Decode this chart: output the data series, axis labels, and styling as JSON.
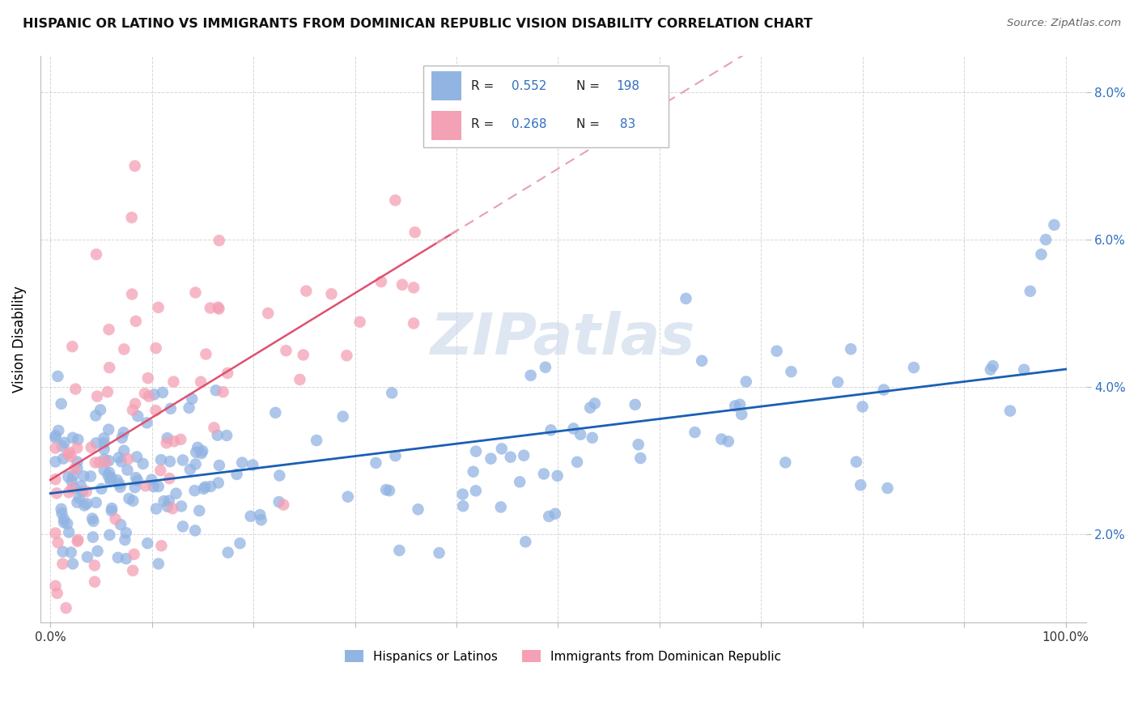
{
  "title": "HISPANIC OR LATINO VS IMMIGRANTS FROM DOMINICAN REPUBLIC VISION DISABILITY CORRELATION CHART",
  "source": "Source: ZipAtlas.com",
  "ylabel": "Vision Disability",
  "xlim": [
    -0.01,
    1.02
  ],
  "ylim": [
    0.008,
    0.085
  ],
  "yticks": [
    0.02,
    0.04,
    0.06,
    0.08
  ],
  "ytick_labels": [
    "2.0%",
    "4.0%",
    "6.0%",
    "8.0%"
  ],
  "xticks": [
    0.0,
    0.1,
    0.2,
    0.3,
    0.4,
    0.5,
    0.6,
    0.7,
    0.8,
    0.9,
    1.0
  ],
  "xtick_labels": [
    "0.0%",
    "",
    "",
    "",
    "",
    "",
    "",
    "",
    "",
    "",
    "100.0%"
  ],
  "blue_color": "#92b4e3",
  "pink_color": "#f4a0b5",
  "blue_line_color": "#1a5fb4",
  "pink_line_color": "#e05070",
  "pink_dash_color": "#e8a0b0",
  "legend_R_color": "#3070c0",
  "legend_N_color": "#3070c0",
  "R_blue": 0.552,
  "N_blue": 198,
  "R_pink": 0.268,
  "N_pink": 83,
  "watermark": "ZIPatlas",
  "watermark_color": "#c8d8e8"
}
